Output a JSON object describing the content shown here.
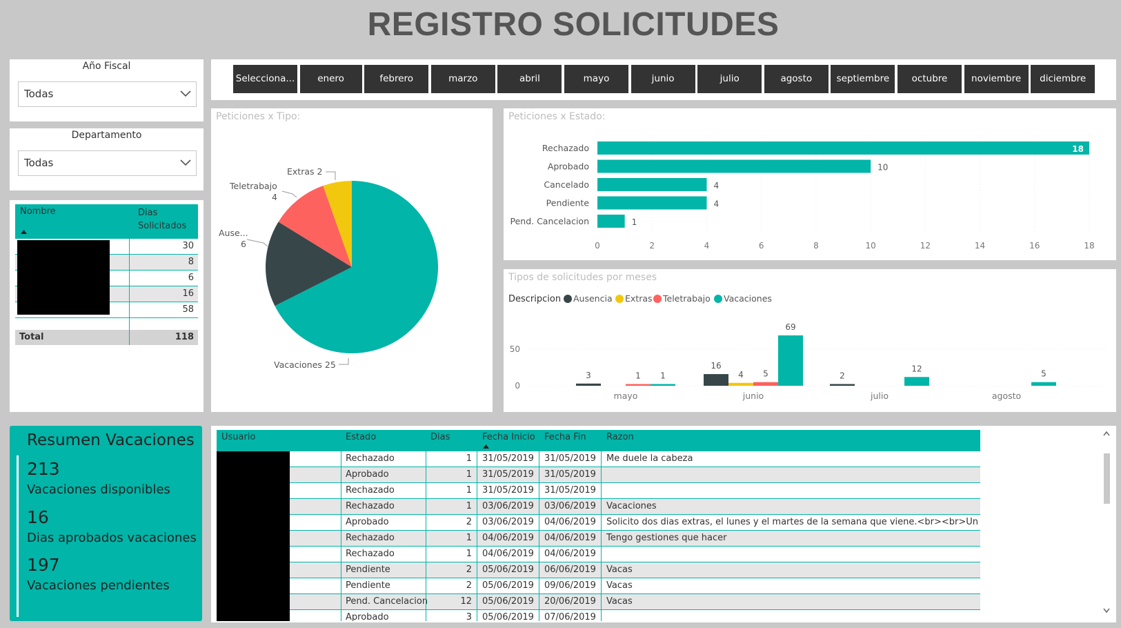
{
  "page_title": "REGISTRO SOLICITUDES",
  "slicers": {
    "fiscal_year": {
      "title": "Año Fiscal",
      "value": "Todas"
    },
    "department": {
      "title": "Departamento",
      "value": "Todas"
    }
  },
  "months": [
    "Selecciona...",
    "enero",
    "febrero",
    "marzo",
    "abril",
    "mayo",
    "junio",
    "julio",
    "agosto",
    "septiembre",
    "octubre",
    "noviembre",
    "diciembre"
  ],
  "summary_table": {
    "headers": [
      "Nombre",
      "Dias Solicitados"
    ],
    "rows": [
      {
        "dias": "30"
      },
      {
        "dias": "8"
      },
      {
        "dias": "6"
      },
      {
        "dias": "16"
      },
      {
        "dias": "58"
      }
    ],
    "total_label": "Total",
    "total_value": "118"
  },
  "kpi": {
    "title": "Resumen Vacaciones",
    "items": [
      {
        "value": "213",
        "label": "Vacaciones disponibles"
      },
      {
        "value": "16",
        "label": "Dias aprobados vacaciones"
      },
      {
        "value": "197",
        "label": "Vacaciones pendientes"
      }
    ]
  },
  "requests_table": {
    "headers": [
      "Usuario",
      "Estado",
      "Dias",
      "Fecha Inicio",
      "Fecha Fin",
      "Razon"
    ],
    "rows": [
      {
        "estado": "Rechazado",
        "dias": "1",
        "inicio": "31/05/2019",
        "fin": "31/05/2019",
        "razon": "Me duele la cabeza"
      },
      {
        "estado": "Aprobado",
        "dias": "1",
        "inicio": "31/05/2019",
        "fin": "31/05/2019",
        "razon": ""
      },
      {
        "estado": "Rechazado",
        "dias": "1",
        "inicio": "31/05/2019",
        "fin": "31/05/2019",
        "razon": ""
      },
      {
        "estado": "Rechazado",
        "dias": "1",
        "inicio": "03/06/2019",
        "fin": "03/06/2019",
        "razon": "Vacaciones"
      },
      {
        "estado": "Aprobado",
        "dias": "2",
        "inicio": "03/06/2019",
        "fin": "04/06/2019",
        "razon": "Solicito dos dias extras, el lunes y el martes de la semana que viene.<br><br>Un saludo."
      },
      {
        "estado": "Rechazado",
        "dias": "1",
        "inicio": "04/06/2019",
        "fin": "04/06/2019",
        "razon": "Tengo gestiones que hacer"
      },
      {
        "estado": "Rechazado",
        "dias": "1",
        "inicio": "04/06/2019",
        "fin": "04/06/2019",
        "razon": ""
      },
      {
        "estado": "Pendiente",
        "dias": "2",
        "inicio": "05/06/2019",
        "fin": "06/06/2019",
        "razon": "Vacas"
      },
      {
        "estado": "Pendiente",
        "dias": "2",
        "inicio": "05/06/2019",
        "fin": "09/06/2019",
        "razon": "Vacas"
      },
      {
        "estado": "Pend. Cancelacion",
        "dias": "12",
        "inicio": "05/06/2019",
        "fin": "20/06/2019",
        "razon": "Vacas"
      },
      {
        "estado": "Aprobado",
        "dias": "3",
        "inicio": "05/06/2019",
        "fin": "07/06/2019",
        "razon": ""
      }
    ]
  },
  "colors": {
    "teal": "#01b5a8",
    "dark": "#374649",
    "red": "#fd625e",
    "yellow": "#f2c80f",
    "button": "#333333"
  },
  "chart_data": [
    {
      "type": "pie",
      "title": "Peticiones x Tipo:",
      "slices": [
        {
          "name": "Vacaciones",
          "value": 25
        },
        {
          "name": "Ause...",
          "value": 6
        },
        {
          "name": "Teletrabajo",
          "value": 4
        },
        {
          "name": "Extras",
          "value": 2
        }
      ]
    },
    {
      "type": "bar",
      "orientation": "horizontal",
      "title": "Peticiones x Estado:",
      "categories": [
        "Rechazado",
        "Aprobado",
        "Cancelado",
        "Pendiente",
        "Pend. Cancelacion"
      ],
      "values": [
        18,
        10,
        4,
        4,
        1
      ],
      "xlim": [
        0,
        18
      ],
      "ticks": [
        0,
        2,
        4,
        6,
        8,
        10,
        12,
        14,
        16,
        18
      ]
    },
    {
      "type": "bar",
      "title": "Tipos de solicitudes por meses",
      "legend_title": "Descripcion",
      "categories": [
        "mayo",
        "junio",
        "julio",
        "agosto"
      ],
      "series": [
        {
          "name": "Ausencia",
          "values": [
            3,
            16,
            2,
            null
          ]
        },
        {
          "name": "Extras",
          "values": [
            null,
            4,
            null,
            null
          ]
        },
        {
          "name": "Teletrabajo",
          "values": [
            1,
            5,
            null,
            null
          ]
        },
        {
          "name": "Vacaciones",
          "values": [
            1,
            69,
            12,
            5
          ]
        }
      ],
      "ylim": [
        0,
        69
      ],
      "yticks": [
        0,
        50
      ]
    }
  ]
}
